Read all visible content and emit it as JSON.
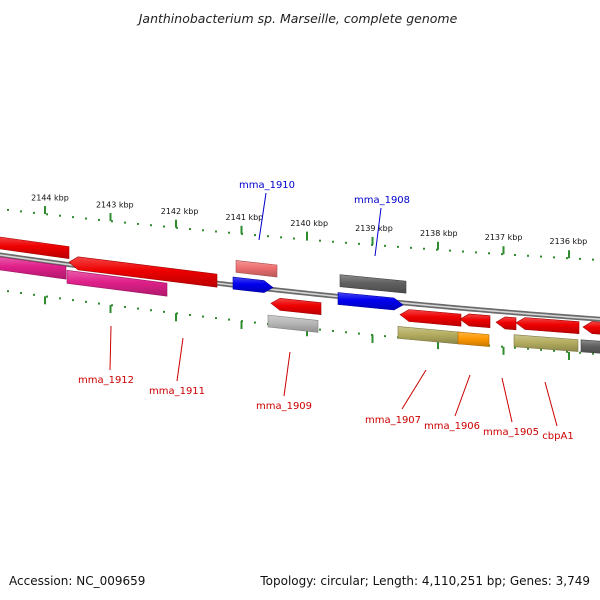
{
  "title": "Janthinobacterium sp. Marseille, complete genome",
  "footer": {
    "accession": "Accession: NC_009659",
    "summary": "Topology: circular; Length: 4,110,251 bp; Genes: 3,749"
  },
  "colors": {
    "background": "#ffffff",
    "backbone": "#8a8a8a",
    "tick": "#2e8b2e",
    "strand_label": "#0000cc",
    "minus_label": "#cc0000",
    "gene_red": "#ee0000",
    "gene_magenta": "#e0208a",
    "gene_blue": "#0000ee",
    "gene_gray": "#606060",
    "gene_light_gray": "#b8b8b8",
    "gene_salmon": "#ee7070",
    "gene_olive": "#b4ad60",
    "gene_orange": "#ff9900"
  },
  "tick_labels": [
    "2144 kbp",
    "2143 kbp",
    "2142 kbp",
    "2141 kbp",
    "2140 kbp",
    "2139 kbp",
    "2138 kbp",
    "2137 kbp",
    "2136 kbp"
  ],
  "gene_labels": {
    "plus": [
      "mma_1910",
      "mma_1908"
    ],
    "minus": [
      "mma_1912",
      "mma_1911",
      "mma_1909",
      "mma_1907",
      "mma_1906",
      "mma_1905",
      "cbpA1"
    ]
  }
}
